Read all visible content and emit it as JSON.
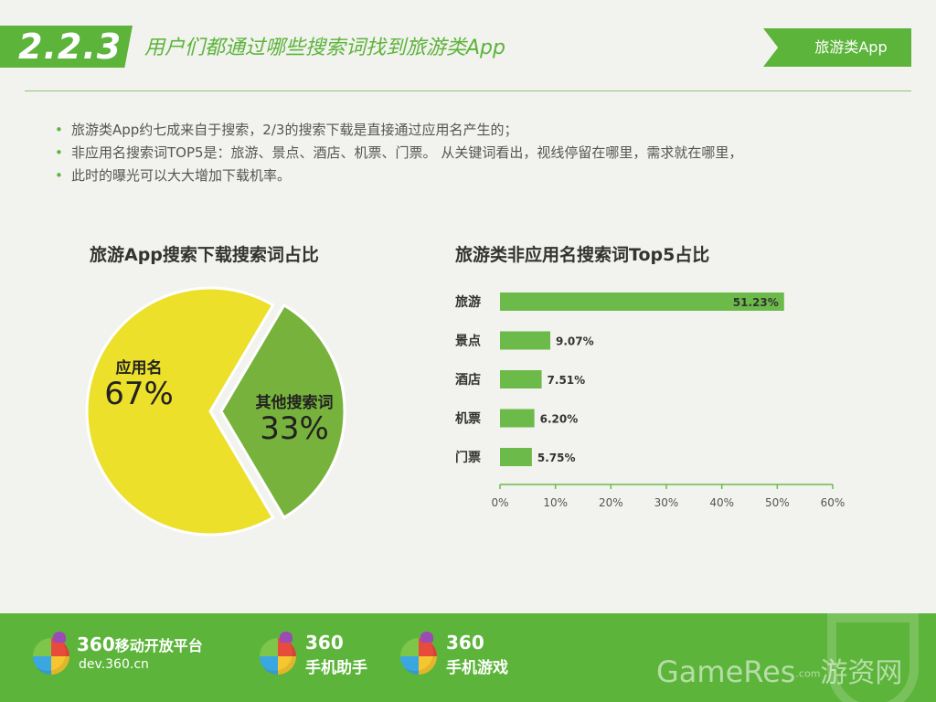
{
  "header": {
    "section_number": "2.2.3",
    "title": "用户们都通过哪些搜索词找到旅游类App",
    "tag": "旅游类App"
  },
  "bullets": [
    "旅游类App约七成来自于搜索，2/3的搜索下载是直接通过应用名产生的；",
    "非应用名搜索词TOP5是：旅游、景点、酒店、机票、门票。 从关键词看出，视线停留在哪里，需求就在哪里，",
    "此时的曝光可以大大增加下载机率。"
  ],
  "chart_data": [
    {
      "type": "pie",
      "title": "旅游App搜索下载搜索词占比",
      "slices": [
        {
          "label": "应用名",
          "value": 67,
          "value_label": "67%",
          "color": "#ece02a"
        },
        {
          "label": "其他搜索词",
          "value": 33,
          "value_label": "33%",
          "color": "#77b33c"
        }
      ]
    },
    {
      "type": "bar",
      "orientation": "horizontal",
      "title": "旅游类非应用名搜索词Top5占比",
      "categories": [
        "旅游",
        "景点",
        "酒店",
        "机票",
        "门票"
      ],
      "values": [
        51.23,
        9.07,
        7.51,
        6.2,
        5.75
      ],
      "value_labels": [
        "51.23%",
        "9.07%",
        "7.51%",
        "6.20%",
        "5.75%"
      ],
      "xlim": [
        0,
        60
      ],
      "xticks": [
        "0%",
        "10%",
        "20%",
        "30%",
        "40%",
        "50%",
        "60%"
      ],
      "bar_color": "#6cbb4a",
      "grid": false
    }
  ],
  "footer": {
    "logos": [
      {
        "brand": "360",
        "name": "移动开放平台",
        "url": "dev.360.cn"
      },
      {
        "brand": "360",
        "name": "手机助手"
      },
      {
        "brand": "360",
        "name": "手机游戏"
      }
    ],
    "watermark_en": "GameRes",
    "watermark_com": ".com",
    "watermark_cn": "游资网"
  }
}
